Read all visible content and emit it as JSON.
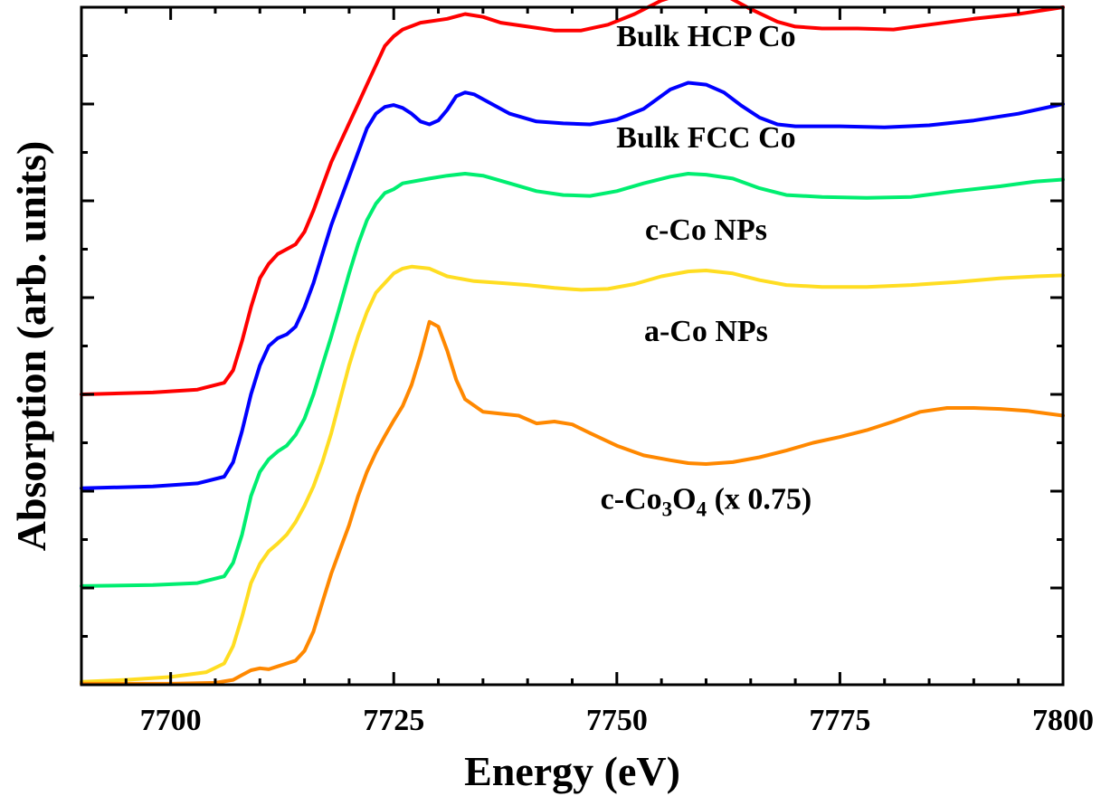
{
  "chart_data": {
    "type": "line",
    "xlabel": "Energy (eV)",
    "ylabel": "Absorption (arb. units)",
    "xlim": [
      7690,
      7800
    ],
    "ylim": [
      0,
      7
    ],
    "x_ticks": [
      "7700",
      "7725",
      "7750",
      "7775",
      "7800"
    ],
    "x_tick_values": [
      7700,
      7725,
      7750,
      7775,
      7800
    ],
    "y_tick_labels_shown": false,
    "grid": false,
    "legend": "none",
    "series": [
      {
        "name": "Bulk HCP Co",
        "label_parts": {
          "main": "Bulk HCP Co"
        },
        "label_at": [
          7760,
          6.6
        ],
        "color": "#ff0000",
        "points": [
          [
            7690,
            3.0
          ],
          [
            7698,
            3.02
          ],
          [
            7703,
            3.05
          ],
          [
            7706,
            3.12
          ],
          [
            7707,
            3.25
          ],
          [
            7708,
            3.55
          ],
          [
            7709,
            3.9
          ],
          [
            7710,
            4.2
          ],
          [
            7711,
            4.35
          ],
          [
            7712,
            4.45
          ],
          [
            7713,
            4.5
          ],
          [
            7714,
            4.55
          ],
          [
            7715,
            4.68
          ],
          [
            7716,
            4.9
          ],
          [
            7717,
            5.15
          ],
          [
            7718,
            5.4
          ],
          [
            7719,
            5.6
          ],
          [
            7720,
            5.8
          ],
          [
            7721,
            6.0
          ],
          [
            7722,
            6.2
          ],
          [
            7723,
            6.4
          ],
          [
            7724,
            6.6
          ],
          [
            7725,
            6.7
          ],
          [
            7726,
            6.77
          ],
          [
            7728,
            6.84
          ],
          [
            7731,
            6.88
          ],
          [
            7733,
            6.93
          ],
          [
            7735,
            6.9
          ],
          [
            7737,
            6.84
          ],
          [
            7740,
            6.8
          ],
          [
            7743,
            6.76
          ],
          [
            7746,
            6.76
          ],
          [
            7749,
            6.82
          ],
          [
            7752,
            6.93
          ],
          [
            7755,
            7.07
          ],
          [
            7758,
            7.16
          ],
          [
            7760,
            7.17
          ],
          [
            7762,
            7.13
          ],
          [
            7765,
            6.98
          ],
          [
            7768,
            6.85
          ],
          [
            7770,
            6.8
          ],
          [
            7773,
            6.78
          ],
          [
            7777,
            6.78
          ],
          [
            7781,
            6.77
          ],
          [
            7785,
            6.82
          ],
          [
            7790,
            6.88
          ],
          [
            7795,
            6.93
          ],
          [
            7800,
            7.0
          ]
        ]
      },
      {
        "name": "Bulk FCC Co",
        "label_parts": {
          "main": "Bulk FCC Co"
        },
        "label_at": [
          7760,
          5.55
        ],
        "color": "#0000ff",
        "points": [
          [
            7690,
            2.03
          ],
          [
            7698,
            2.05
          ],
          [
            7703,
            2.08
          ],
          [
            7706,
            2.15
          ],
          [
            7707,
            2.3
          ],
          [
            7708,
            2.62
          ],
          [
            7709,
            3.0
          ],
          [
            7710,
            3.3
          ],
          [
            7711,
            3.5
          ],
          [
            7712,
            3.58
          ],
          [
            7713,
            3.62
          ],
          [
            7714,
            3.7
          ],
          [
            7715,
            3.9
          ],
          [
            7716,
            4.15
          ],
          [
            7717,
            4.45
          ],
          [
            7718,
            4.75
          ],
          [
            7719,
            5.0
          ],
          [
            7720,
            5.25
          ],
          [
            7721,
            5.5
          ],
          [
            7722,
            5.75
          ],
          [
            7723,
            5.9
          ],
          [
            7724,
            5.97
          ],
          [
            7725,
            5.99
          ],
          [
            7726,
            5.96
          ],
          [
            7727,
            5.9
          ],
          [
            7728,
            5.82
          ],
          [
            7729,
            5.79
          ],
          [
            7730,
            5.83
          ],
          [
            7731,
            5.94
          ],
          [
            7732,
            6.08
          ],
          [
            7733,
            6.12
          ],
          [
            7734,
            6.1
          ],
          [
            7736,
            6.0
          ],
          [
            7738,
            5.9
          ],
          [
            7741,
            5.82
          ],
          [
            7744,
            5.8
          ],
          [
            7747,
            5.79
          ],
          [
            7750,
            5.84
          ],
          [
            7753,
            5.95
          ],
          [
            7756,
            6.15
          ],
          [
            7758,
            6.22
          ],
          [
            7760,
            6.2
          ],
          [
            7762,
            6.12
          ],
          [
            7764,
            5.98
          ],
          [
            7766,
            5.86
          ],
          [
            7768,
            5.79
          ],
          [
            7770,
            5.77
          ],
          [
            7775,
            5.77
          ],
          [
            7780,
            5.76
          ],
          [
            7785,
            5.78
          ],
          [
            7790,
            5.83
          ],
          [
            7795,
            5.9
          ],
          [
            7800,
            6.0
          ]
        ]
      },
      {
        "name": "c-Co NPs",
        "label_parts": {
          "main": "c-Co NPs"
        },
        "label_at": [
          7760,
          4.6
        ],
        "color": "#00ee70",
        "points": [
          [
            7690,
            1.02
          ],
          [
            7698,
            1.03
          ],
          [
            7703,
            1.05
          ],
          [
            7706,
            1.12
          ],
          [
            7707,
            1.26
          ],
          [
            7708,
            1.55
          ],
          [
            7709,
            1.95
          ],
          [
            7710,
            2.2
          ],
          [
            7711,
            2.33
          ],
          [
            7712,
            2.41
          ],
          [
            7713,
            2.47
          ],
          [
            7714,
            2.58
          ],
          [
            7715,
            2.75
          ],
          [
            7716,
            3.0
          ],
          [
            7717,
            3.3
          ],
          [
            7718,
            3.6
          ],
          [
            7719,
            3.92
          ],
          [
            7720,
            4.25
          ],
          [
            7721,
            4.55
          ],
          [
            7722,
            4.8
          ],
          [
            7723,
            4.97
          ],
          [
            7724,
            5.08
          ],
          [
            7725,
            5.12
          ],
          [
            7726,
            5.18
          ],
          [
            7729,
            5.23
          ],
          [
            7731,
            5.26
          ],
          [
            7733,
            5.28
          ],
          [
            7735,
            5.26
          ],
          [
            7738,
            5.18
          ],
          [
            7741,
            5.1
          ],
          [
            7744,
            5.06
          ],
          [
            7747,
            5.05
          ],
          [
            7750,
            5.1
          ],
          [
            7753,
            5.18
          ],
          [
            7756,
            5.25
          ],
          [
            7758,
            5.28
          ],
          [
            7760,
            5.27
          ],
          [
            7763,
            5.23
          ],
          [
            7766,
            5.13
          ],
          [
            7769,
            5.06
          ],
          [
            7773,
            5.04
          ],
          [
            7778,
            5.03
          ],
          [
            7783,
            5.04
          ],
          [
            7788,
            5.1
          ],
          [
            7793,
            5.15
          ],
          [
            7797,
            5.2
          ],
          [
            7800,
            5.22
          ]
        ]
      },
      {
        "name": "a-Co NPs",
        "label_parts": {
          "main": "a-Co NPs"
        },
        "label_at": [
          7760,
          3.55
        ],
        "color": "#ffdd22",
        "points": [
          [
            7690,
            0.03
          ],
          [
            7695,
            0.05
          ],
          [
            7700,
            0.08
          ],
          [
            7704,
            0.13
          ],
          [
            7706,
            0.22
          ],
          [
            7707,
            0.4
          ],
          [
            7708,
            0.7
          ],
          [
            7709,
            1.05
          ],
          [
            7710,
            1.25
          ],
          [
            7711,
            1.38
          ],
          [
            7712,
            1.46
          ],
          [
            7713,
            1.55
          ],
          [
            7714,
            1.68
          ],
          [
            7715,
            1.85
          ],
          [
            7716,
            2.05
          ],
          [
            7717,
            2.3
          ],
          [
            7718,
            2.6
          ],
          [
            7719,
            2.95
          ],
          [
            7720,
            3.3
          ],
          [
            7721,
            3.6
          ],
          [
            7722,
            3.85
          ],
          [
            7723,
            4.05
          ],
          [
            7724,
            4.15
          ],
          [
            7725,
            4.25
          ],
          [
            7726,
            4.3
          ],
          [
            7727,
            4.32
          ],
          [
            7729,
            4.3
          ],
          [
            7731,
            4.22
          ],
          [
            7734,
            4.17
          ],
          [
            7737,
            4.15
          ],
          [
            7740,
            4.13
          ],
          [
            7743,
            4.1
          ],
          [
            7746,
            4.08
          ],
          [
            7749,
            4.09
          ],
          [
            7752,
            4.14
          ],
          [
            7755,
            4.22
          ],
          [
            7758,
            4.27
          ],
          [
            7760,
            4.28
          ],
          [
            7763,
            4.25
          ],
          [
            7766,
            4.18
          ],
          [
            7769,
            4.13
          ],
          [
            7773,
            4.11
          ],
          [
            7778,
            4.11
          ],
          [
            7783,
            4.13
          ],
          [
            7788,
            4.16
          ],
          [
            7793,
            4.2
          ],
          [
            7797,
            4.22
          ],
          [
            7800,
            4.23
          ]
        ]
      },
      {
        "name": "c-Co3O4 (x 0.75)",
        "label_parts": {
          "prefix": "c-Co",
          "sub1": "3",
          "mid": "O",
          "sub2": "4",
          "suffix": " (x 0.75)"
        },
        "label_at": [
          7760,
          1.82
        ],
        "color": "#ff8800",
        "points": [
          [
            7690,
            0.01
          ],
          [
            7700,
            0.01
          ],
          [
            7705,
            0.02
          ],
          [
            7707,
            0.05
          ],
          [
            7708,
            0.1
          ],
          [
            7709,
            0.15
          ],
          [
            7710,
            0.17
          ],
          [
            7711,
            0.16
          ],
          [
            7712,
            0.19
          ],
          [
            7713,
            0.22
          ],
          [
            7714,
            0.25
          ],
          [
            7715,
            0.35
          ],
          [
            7716,
            0.55
          ],
          [
            7717,
            0.85
          ],
          [
            7718,
            1.15
          ],
          [
            7719,
            1.4
          ],
          [
            7720,
            1.65
          ],
          [
            7721,
            1.95
          ],
          [
            7722,
            2.2
          ],
          [
            7723,
            2.4
          ],
          [
            7724,
            2.57
          ],
          [
            7725,
            2.73
          ],
          [
            7726,
            2.88
          ],
          [
            7727,
            3.1
          ],
          [
            7728,
            3.4
          ],
          [
            7729,
            3.75
          ],
          [
            7730,
            3.7
          ],
          [
            7731,
            3.45
          ],
          [
            7732,
            3.15
          ],
          [
            7733,
            2.95
          ],
          [
            7735,
            2.82
          ],
          [
            7737,
            2.8
          ],
          [
            7739,
            2.78
          ],
          [
            7741,
            2.7
          ],
          [
            7743,
            2.72
          ],
          [
            7745,
            2.69
          ],
          [
            7747,
            2.6
          ],
          [
            7750,
            2.47
          ],
          [
            7753,
            2.37
          ],
          [
            7756,
            2.32
          ],
          [
            7758,
            2.29
          ],
          [
            7760,
            2.28
          ],
          [
            7763,
            2.3
          ],
          [
            7766,
            2.35
          ],
          [
            7769,
            2.42
          ],
          [
            7772,
            2.5
          ],
          [
            7775,
            2.56
          ],
          [
            7778,
            2.63
          ],
          [
            7781,
            2.72
          ],
          [
            7784,
            2.82
          ],
          [
            7787,
            2.86
          ],
          [
            7790,
            2.86
          ],
          [
            7793,
            2.85
          ],
          [
            7796,
            2.83
          ],
          [
            7800,
            2.78
          ]
        ]
      }
    ]
  }
}
